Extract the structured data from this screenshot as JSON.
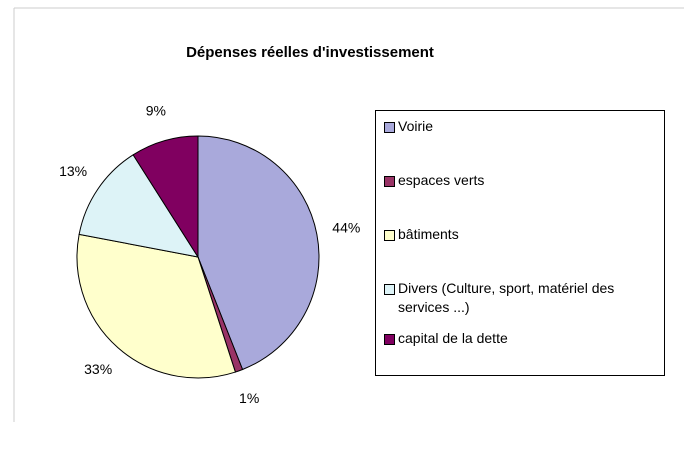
{
  "chart_data": {
    "type": "pie",
    "title": "Dépenses réelles d'investissement",
    "categories": [
      "Voirie",
      "espaces verts",
      "bâtiments",
      "Divers (Culture, sport, matériel des services ...)",
      "capital de la dette"
    ],
    "values": [
      44,
      1,
      33,
      13,
      9
    ],
    "value_labels": [
      "44%",
      "1%",
      "33%",
      "13%",
      "9%"
    ],
    "colors": [
      "#a9a9db",
      "#993366",
      "#ffffcc",
      "#ddf3f7",
      "#800060"
    ],
    "legend": "right"
  }
}
